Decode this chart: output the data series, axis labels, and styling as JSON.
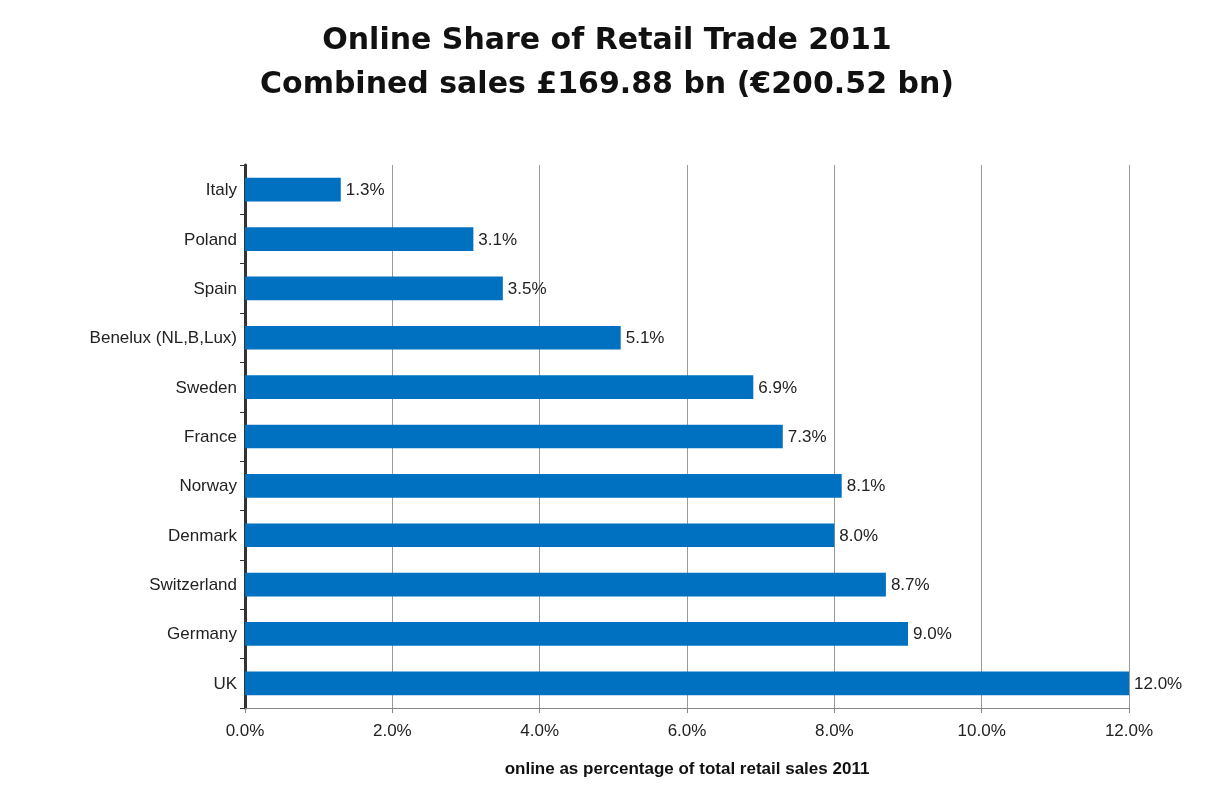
{
  "chart_data": {
    "type": "bar",
    "orientation": "horizontal",
    "title": "Online Share of Retail Trade 2011",
    "subtitle": "Combined sales £169.88 bn (€200.52 bn)",
    "xlabel": "online as percentage of total retail sales 2011",
    "categories": [
      "Italy",
      "Poland",
      "Spain",
      "Benelux (NL,B,Lux)",
      "Sweden",
      "France",
      "Norway",
      "Denmark",
      "Switzerland",
      "Germany",
      "UK"
    ],
    "values": [
      1.3,
      3.1,
      3.5,
      5.1,
      6.9,
      7.3,
      8.1,
      8.0,
      8.7,
      9.0,
      12.0
    ],
    "value_labels": [
      "1.3%",
      "3.1%",
      "3.5%",
      "5.1%",
      "6.9%",
      "7.3%",
      "8.1%",
      "8.0%",
      "8.7%",
      "9.0%",
      "12.0%"
    ],
    "color": "#0070c0",
    "xlim": [
      0,
      12
    ],
    "xticks": [
      {
        "value": 0,
        "label": "0.0%"
      },
      {
        "value": 2,
        "label": "2.0%"
      },
      {
        "value": 4,
        "label": "4.0%"
      },
      {
        "value": 6,
        "label": "6.0%"
      },
      {
        "value": 8,
        "label": "8.0%"
      },
      {
        "value": 10,
        "label": "10.0%"
      },
      {
        "value": 12,
        "label": "12.0%"
      }
    ],
    "grid": "x"
  }
}
